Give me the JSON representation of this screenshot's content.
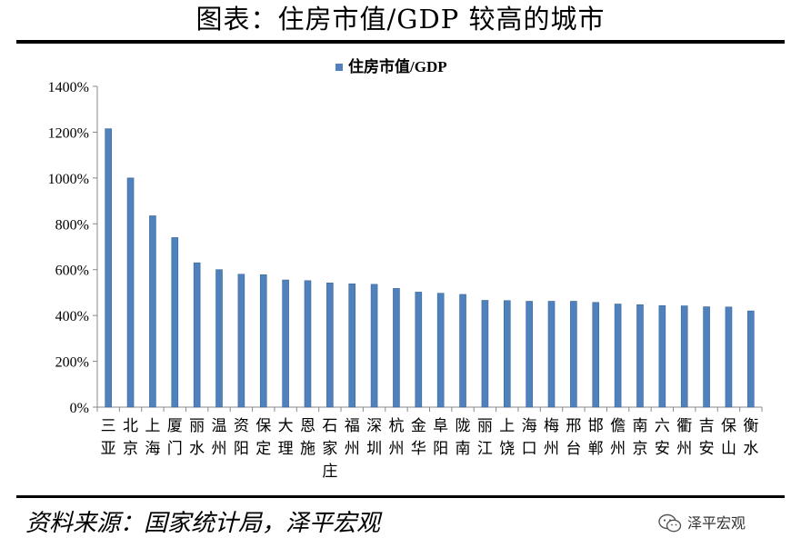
{
  "title": "图表：住房市值/GDP 较高的城市",
  "source": "资料来源：国家统计局，泽平宏观",
  "watermark": "泽平宏观",
  "chart_data": {
    "type": "bar",
    "title": "",
    "xlabel": "",
    "ylabel": "",
    "legend": {
      "position": "top-center",
      "entries": [
        "住房市值/GDP"
      ]
    },
    "series": [
      {
        "name": "住房市值/GDP",
        "color": "#4f81bd",
        "values": [
          1215,
          1000,
          835,
          740,
          630,
          600,
          580,
          578,
          555,
          552,
          542,
          538,
          536,
          518,
          502,
          497,
          492,
          466,
          465,
          462,
          462,
          462,
          457,
          450,
          447,
          443,
          442,
          438,
          437,
          420
        ]
      }
    ],
    "categories": [
      "三亚",
      "北京",
      "上海",
      "厦门",
      "丽水",
      "温州",
      "资阳",
      "保定",
      "大理",
      "恩施",
      "石家庄",
      "福州",
      "深圳",
      "杭州",
      "金华",
      "阜阳",
      "陇南",
      "丽江",
      "上饶",
      "海口",
      "梅州",
      "邢台",
      "邯郸",
      "儋州",
      "南京",
      "六安",
      "衢州",
      "吉安",
      "保山",
      "衡水"
    ],
    "ylim": [
      0,
      1400
    ],
    "yticks": [
      0,
      200,
      400,
      600,
      800,
      1000,
      1200,
      1400
    ],
    "ytick_labels": [
      "0%",
      "200%",
      "400%",
      "600%",
      "800%",
      "1000%",
      "1200%",
      "1400%"
    ],
    "grid": false
  }
}
